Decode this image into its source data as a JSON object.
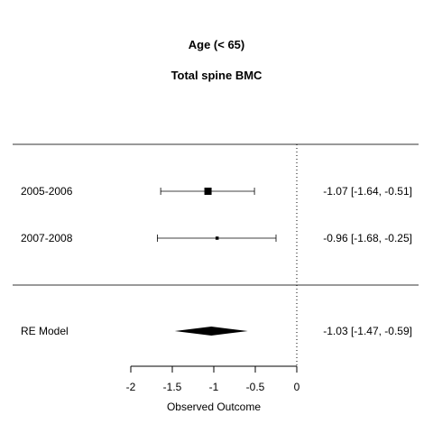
{
  "chart_data": {
    "type": "forest",
    "title": "Age (< 65)",
    "subtitle": "Total spine BMC",
    "xlabel": "Observed Outcome",
    "xlim": [
      -2,
      0
    ],
    "xticks": [
      -2,
      -1.5,
      -1,
      -0.5,
      0
    ],
    "xtick_labels": [
      "-2",
      "-1.5",
      "-1",
      "-0.5",
      "0"
    ],
    "reference_line": 0,
    "studies": [
      {
        "label": "2005-2006",
        "estimate": -1.07,
        "lower": -1.64,
        "upper": -0.51,
        "text": "-1.07 [-1.64, -0.51]",
        "weight": 1.0
      },
      {
        "label": "2007-2008",
        "estimate": -0.96,
        "lower": -1.68,
        "upper": -0.25,
        "text": "-0.96 [-1.68, -0.25]",
        "weight": 0.3
      }
    ],
    "summary": {
      "label": "RE Model",
      "estimate": -1.03,
      "lower": -1.47,
      "upper": -0.59,
      "text": "-1.03 [-1.47, -0.59]"
    }
  }
}
